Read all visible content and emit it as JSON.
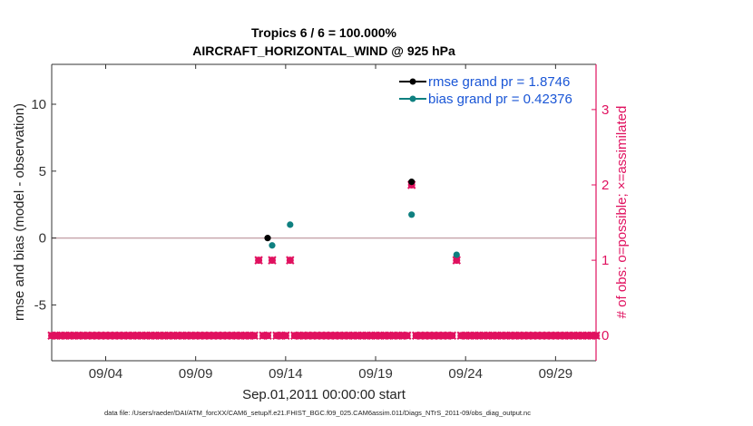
{
  "chart_data": {
    "type": "scatter",
    "title": "Tropics 6 / 6 = 100.000%",
    "subtitle": "AIRCRAFT_HORIZONTAL_WIND @ 925 hPa",
    "xlabel": "Sep.01,2011 00:00:00 start",
    "ylabel_left": "rmse and bias (model - observation)",
    "ylabel_right": "# of obs: o=possible; ×=assimilated",
    "footnote": "data file: /Users/raeder/DAI/ATM_forcXX/CAM6_setup/f.e21.FHIST_BGC.f09_025.CAM6assim.011/Diags_NTrS_2011-09/obs_diag_output.nc",
    "xlim": [
      0.5,
      30.75
    ],
    "ylim_left": [
      -9.17,
      12.98
    ],
    "ylim_right": [
      -0.334,
      3.6
    ],
    "xticks": [
      3.5,
      8.5,
      13.5,
      18.5,
      23.5,
      28.5
    ],
    "xtick_labels": [
      "09/04",
      "09/09",
      "09/14",
      "09/19",
      "09/24",
      "09/29"
    ],
    "yticks_left": [
      -5,
      0,
      5,
      10
    ],
    "yticks_left_labels": [
      "-5",
      "0",
      "5",
      "10"
    ],
    "yticks_right": [
      0,
      1,
      2,
      3
    ],
    "yticks_right_labels": [
      "0",
      "1",
      "2",
      "3"
    ],
    "zero_line": 0,
    "legend": {
      "position": "top-right",
      "entries": [
        {
          "label": "rmse grand pr = 1.8746",
          "color": "#000000"
        },
        {
          "label": "bias grand pr = 0.42376",
          "color": "#0f8080"
        }
      ]
    },
    "series": [
      {
        "name": "rmse",
        "color": "#000000",
        "points": [
          [
            12.5,
            0.0
          ],
          [
            20.5,
            4.2
          ]
        ]
      },
      {
        "name": "bias",
        "color": "#0f8080",
        "points": [
          [
            12.75,
            -0.55
          ],
          [
            13.75,
            1.0
          ],
          [
            20.5,
            1.75
          ],
          [
            23.0,
            -1.25
          ]
        ]
      }
    ],
    "obs_count": {
      "color": "#e0115f",
      "start": 0.5,
      "step": 0.25,
      "end": 30.75,
      "nonzero": [
        [
          12.0,
          1
        ],
        [
          12.75,
          1
        ],
        [
          13.75,
          1
        ],
        [
          20.5,
          2
        ],
        [
          23.0,
          1
        ]
      ]
    },
    "colors": {
      "axis": "#333333",
      "right_axis": "#e0115f",
      "zero_line": "#c8a8ae",
      "legend_text": "#1a56d6"
    }
  }
}
